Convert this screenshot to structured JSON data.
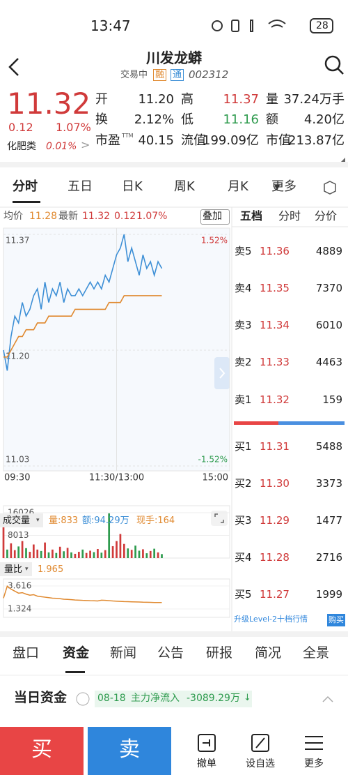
{
  "status_bar": {
    "time": "13:47",
    "battery": "28"
  },
  "header": {
    "title": "川发龙蟒",
    "state": "交易中",
    "tags": [
      "融",
      "通"
    ],
    "code": "002312"
  },
  "quote": {
    "price": "11.32",
    "change": "0.12",
    "change_pct": "1.07%",
    "sector": {
      "name": "化肥类",
      "change": "0.01%"
    },
    "stats": [
      [
        {
          "label": "开",
          "value": "11.20"
        },
        {
          "label": "高",
          "value": "11.37"
        },
        {
          "label": "量",
          "value": "37.24万手"
        }
      ],
      [
        {
          "label": "换",
          "value": "2.12%"
        },
        {
          "label": "低",
          "value": "11.16"
        },
        {
          "label": "额",
          "value": "4.20亿"
        }
      ],
      [
        {
          "label": "市盈",
          "sup": "TTM",
          "value": "40.15"
        },
        {
          "label": "流值",
          "value": "199.09亿"
        },
        {
          "label": "市值",
          "value": "213.87亿"
        }
      ]
    ]
  },
  "chart_tabs": [
    "分时",
    "五日",
    "日K",
    "周K",
    "月K",
    "更多"
  ],
  "legend": {
    "avg_label": "均价",
    "avg": "11.28",
    "last_label": "最新",
    "last": "11.32",
    "change": "0.12",
    "change_pct": "1.07%",
    "overlay": "叠加"
  },
  "intraday": {
    "type": "line",
    "x": [
      0,
      4,
      8,
      12,
      16,
      20,
      24,
      28,
      32,
      36,
      40,
      44,
      48,
      52,
      56,
      60,
      64,
      68,
      72,
      76,
      80,
      84,
      88,
      92,
      96,
      100,
      104,
      108,
      112,
      116,
      120,
      124,
      128,
      132,
      136,
      140,
      144,
      148,
      152,
      156,
      160,
      164,
      168
    ],
    "xlim": [
      0,
      240
    ],
    "xticks": [
      {
        "value": 0,
        "label": "09:30"
      },
      {
        "value": 120,
        "label": "11:30/13:00"
      },
      {
        "value": 240,
        "label": "15:00"
      }
    ],
    "ylim": [
      11.03,
      11.37
    ],
    "yticks": [
      11.37,
      {
        "value": 11.2,
        "label": "11.20"
      },
      11.03
    ],
    "y2lim": [
      -1.52,
      1.52
    ],
    "y2ticks": [
      {
        "value": 1.52,
        "label": "1.52%"
      },
      {
        "value": -1.52,
        "label": "-1.52%"
      }
    ],
    "series": [
      {
        "color": "#3d8fd6",
        "values": [
          11.2,
          11.17,
          11.22,
          11.25,
          11.24,
          11.27,
          11.25,
          11.26,
          11.28,
          11.29,
          11.26,
          11.3,
          11.27,
          11.29,
          11.28,
          11.3,
          11.27,
          11.29,
          11.28,
          11.28,
          11.29,
          11.28,
          11.29,
          11.3,
          11.29,
          11.3,
          11.29,
          11.31,
          11.3,
          11.32,
          11.34,
          11.35,
          11.37,
          11.33,
          11.35,
          11.33,
          11.31,
          11.34,
          11.32,
          11.33,
          11.31,
          11.33,
          11.32
        ]
      },
      {
        "color": "#e0892f",
        "values": [
          11.19,
          11.19,
          11.2,
          11.21,
          11.22,
          11.22,
          11.23,
          11.23,
          11.23,
          11.24,
          11.24,
          11.24,
          11.25,
          11.25,
          11.25,
          11.25,
          11.25,
          11.25,
          11.25,
          11.26,
          11.26,
          11.26,
          11.26,
          11.26,
          11.26,
          11.26,
          11.26,
          11.26,
          11.27,
          11.27,
          11.27,
          11.27,
          11.28,
          11.28,
          11.28,
          11.28,
          11.28,
          11.28,
          11.28,
          11.28,
          11.28,
          11.28,
          11.28
        ]
      }
    ]
  },
  "volume": {
    "type": "bar",
    "label": "成交量",
    "stats": [
      "量:833",
      "额:94.29万",
      "现手:164"
    ],
    "up_color": "#d03a3a",
    "down_color": "#2e9b4e",
    "ylim": [
      0,
      16026
    ],
    "yticks": [
      16026,
      8013
    ],
    "values": [
      14500,
      3000,
      5200,
      2800,
      4100,
      6000,
      3500,
      2200,
      4800,
      3000,
      2500,
      5500,
      2000,
      3000,
      1800,
      4000,
      2400,
      3600,
      2000,
      1500,
      2200,
      3000,
      1800,
      2600,
      2100,
      3200,
      1900,
      2800,
      15800,
      4200,
      6000,
      8500,
      5000,
      3400,
      2900,
      4400,
      2600,
      3100,
      1700,
      2500,
      3300,
      2000,
      1400
    ]
  },
  "volume_ratio": {
    "type": "line",
    "label": "量比",
    "current": "1.965",
    "color": "#e0892f",
    "ylim": [
      1.324,
      3.616
    ],
    "yticks": [
      3.616,
      1.324
    ],
    "values": [
      2.4,
      3.6,
      3.3,
      3.1,
      2.9,
      2.95,
      2.8,
      2.7,
      2.75,
      2.6,
      2.55,
      2.5,
      2.45,
      2.4,
      2.38,
      2.35,
      2.3,
      2.28,
      2.25,
      2.22,
      2.2,
      2.18,
      2.17,
      2.15,
      2.14,
      2.12,
      2.2,
      2.18,
      2.15,
      2.12,
      2.1,
      2.08,
      2.06,
      2.05,
      2.04,
      2.03,
      2.02,
      2.0,
      1.99,
      1.98,
      1.97,
      1.97,
      1.965
    ]
  },
  "order_book": {
    "tabs": [
      "五档",
      "分时",
      "分价"
    ],
    "asks": [
      {
        "label": "卖5",
        "price": "11.36",
        "volume": "4889"
      },
      {
        "label": "卖4",
        "price": "11.35",
        "volume": "7370"
      },
      {
        "label": "卖3",
        "price": "11.34",
        "volume": "6010"
      },
      {
        "label": "卖2",
        "price": "11.33",
        "volume": "4463"
      },
      {
        "label": "卖1",
        "price": "11.32",
        "volume": "159"
      }
    ],
    "bids": [
      {
        "label": "买1",
        "price": "11.31",
        "volume": "5488"
      },
      {
        "label": "买2",
        "price": "11.30",
        "volume": "3373"
      },
      {
        "label": "买3",
        "price": "11.29",
        "volume": "1477"
      },
      {
        "label": "买4",
        "price": "11.28",
        "volume": "2716"
      },
      {
        "label": "买5",
        "price": "11.27",
        "volume": "1999"
      }
    ],
    "promo": "升级Level-2十档行情",
    "buy": "购买"
  },
  "info_tabs": [
    "盘口",
    "资金",
    "新闻",
    "公告",
    "研报",
    "简况",
    "全景"
  ],
  "funds": {
    "title": "当日资金",
    "date": "08-18",
    "label": "主力净流入",
    "value": "-3089.29万"
  },
  "bottom_bar": {
    "buy": "买",
    "sell": "卖",
    "actions": [
      "撤单",
      "设自选",
      "更多"
    ]
  }
}
